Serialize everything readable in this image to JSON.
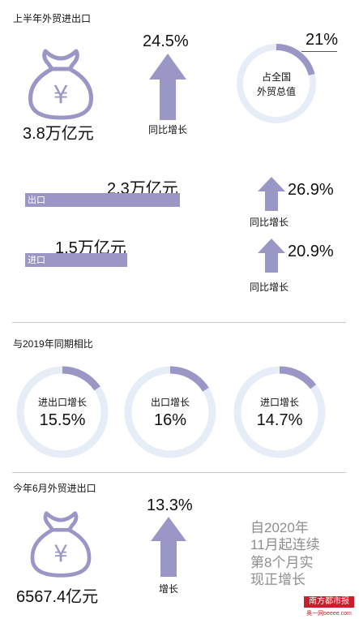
{
  "colors": {
    "accent": "#9a97c6",
    "ring_track": "#e6edf7",
    "note_gray": "#8e8e8e",
    "logo_red": "#c8202a"
  },
  "section1": {
    "title": "上半年外贸进出口",
    "total_value": "3.8万亿元",
    "growth_value": "24.5%",
    "growth_label": "同比增长",
    "share_value": "21%",
    "share_fraction": 0.21,
    "share_label_line1": "占全国",
    "share_label_line2": "外贸总值",
    "icon": "money-bag-yuan-icon"
  },
  "section2": {
    "export": {
      "value": "2.3万亿元",
      "label": "出口",
      "growth_value": "26.9%",
      "growth_label": "同比增长"
    },
    "import": {
      "value": "1.5万亿元",
      "label": "进口",
      "growth_value": "20.9%",
      "growth_label": "同比增长"
    }
  },
  "section3": {
    "title": "与2019年同期相比",
    "rings": [
      {
        "label": "进出口增长",
        "value": "15.5%",
        "fraction": 0.155
      },
      {
        "label": "出口增长",
        "value": "16%",
        "fraction": 0.16
      },
      {
        "label": "进口增长",
        "value": "14.7%",
        "fraction": 0.147
      }
    ]
  },
  "section4": {
    "title": "今年6月外贸进出口",
    "total_value": "6567.4亿元",
    "growth_value": "13.3%",
    "growth_label": "增长",
    "note_lines": [
      "自2020年",
      "11月起连续",
      "第8个月实",
      "现正增长"
    ],
    "icon": "money-bag-yuan-icon"
  },
  "logo": {
    "name": "南方都市报",
    "sub": "奥一网oeeee.com"
  }
}
